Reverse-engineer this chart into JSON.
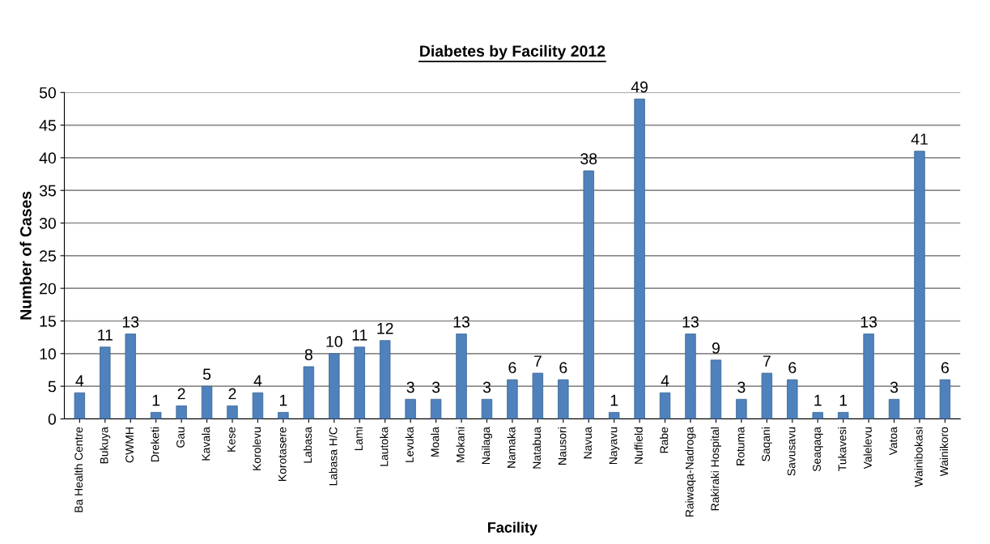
{
  "chart_data": {
    "type": "bar",
    "title": "Diabetes by Facility 2012",
    "xlabel": "Facility",
    "ylabel": "Number of Cases",
    "categories": [
      "Ba Health Centre",
      "Bukuya",
      "CWMH",
      "Dreketi",
      "Gau",
      "Kavala",
      "Kese",
      "Korolevu",
      "Korotasere",
      "Labasa",
      "Labasa H/C",
      "Lami",
      "Lautoka",
      "Levuka",
      "Moala",
      "Mokani",
      "Nailaga",
      "Namaka",
      "Natabua",
      "Nausori",
      "Navua",
      "Nayavu",
      "Nuffield",
      "Rabe",
      "Raiwaqa-Nadroga",
      "Rakiraki Hospital",
      "Rotuma",
      "Saqani",
      "Savusavu",
      "Seaqaqa",
      "Tukavesi",
      "Valelevu",
      "Vatoa",
      "Wainibokasi",
      "Wainikoro"
    ],
    "values": [
      4,
      11,
      13,
      1,
      2,
      5,
      2,
      4,
      1,
      8,
      10,
      11,
      12,
      3,
      3,
      13,
      3,
      6,
      7,
      6,
      38,
      1,
      49,
      4,
      13,
      9,
      3,
      7,
      6,
      1,
      1,
      13,
      3,
      41,
      6
    ],
    "color": "#4f81bd",
    "ylim": [
      0,
      50
    ],
    "yticks": [
      0,
      5,
      10,
      15,
      20,
      25,
      30,
      35,
      40,
      45,
      50
    ],
    "grid": "y",
    "data_labels": true,
    "legend": false
  }
}
